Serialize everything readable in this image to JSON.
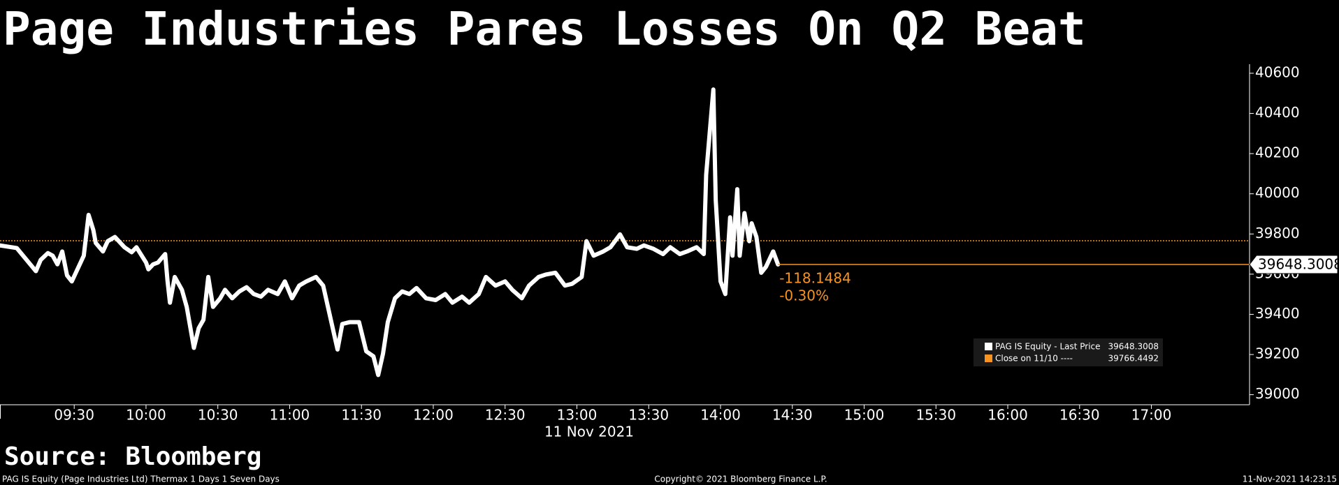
{
  "chart_data": {
    "type": "line",
    "title": "Page Industries Pares Losses On Q2 Beat",
    "source": "Source: Bloomberg",
    "footer_left": "PAG IS Equity (Page Industries Ltd) Thermax 1 Days 1 Seven Days",
    "footer_center": "Copyright© 2021 Bloomberg Finance L.P.",
    "footer_right": "11-Nov-2021 14:23:15",
    "x_label": "11 Nov 2021",
    "xlim": [
      "08:59",
      "17:41"
    ],
    "xticks": [
      "09:30",
      "10:00",
      "10:30",
      "11:00",
      "11:30",
      "12:00",
      "12:30",
      "13:00",
      "13:30",
      "14:00",
      "14:30",
      "15:00",
      "15:30",
      "16:00",
      "16:30",
      "17:00"
    ],
    "ylim": [
      38950,
      40645
    ],
    "yticks": [
      39000,
      39200,
      39400,
      39600,
      39800,
      40000,
      40200,
      40400,
      40600
    ],
    "x": [
      "08:59",
      "09:06",
      "09:14",
      "09:16",
      "09:19",
      "09:21",
      "09:23",
      "09:25",
      "09:27",
      "09:29",
      "09:31",
      "09:34",
      "09:36",
      "09:38",
      "09:39",
      "09:42",
      "09:44",
      "09:47",
      "09:51",
      "09:54",
      "09:56",
      "10:00",
      "10:01",
      "10:03",
      "10:05",
      "10:08",
      "10:09",
      "10:10",
      "10:12",
      "10:15",
      "10:17",
      "10:20",
      "10:22",
      "10:24",
      "10:26",
      "10:28",
      "10:31",
      "10:33",
      "10:36",
      "10:39",
      "10:42",
      "10:45",
      "10:48",
      "10:51",
      "10:55",
      "10:58",
      "11:01",
      "11:04",
      "11:07",
      "11:11",
      "11:14",
      "11:16",
      "11:20",
      "11:22",
      "11:25",
      "11:29",
      "11:32",
      "11:35",
      "11:37",
      "11:39",
      "11:41",
      "11:44",
      "11:47",
      "11:50",
      "11:53",
      "11:57",
      "12:01",
      "12:05",
      "12:08",
      "12:12",
      "12:15",
      "12:19",
      "12:22",
      "12:26",
      "12:30",
      "12:33",
      "12:37",
      "12:40",
      "12:44",
      "12:47",
      "12:51",
      "12:55",
      "12:58",
      "13:02",
      "13:04",
      "13:07",
      "13:11",
      "13:14",
      "13:18",
      "13:21",
      "13:25",
      "13:28",
      "13:32",
      "13:36",
      "13:39",
      "13:43",
      "13:46",
      "13:50",
      "13:53",
      "13:54",
      "13:57",
      "13:58",
      "14:00",
      "14:02",
      "14:04",
      "14:05",
      "14:07",
      "14:08",
      "14:10",
      "14:12",
      "14:13",
      "14:15",
      "14:17",
      "14:19",
      "14:22",
      "14:24"
    ],
    "series": [
      {
        "name": "PAG IS Equity - Last Price",
        "color": "#ffffff",
        "values": [
          39743,
          39730,
          39615,
          39671,
          39705,
          39692,
          39649,
          39713,
          39594,
          39564,
          39615,
          39692,
          39895,
          39819,
          39755,
          39713,
          39764,
          39785,
          39734,
          39709,
          39734,
          39658,
          39624,
          39649,
          39658,
          39700,
          39564,
          39458,
          39586,
          39522,
          39437,
          39233,
          39331,
          39373,
          39586,
          39437,
          39480,
          39522,
          39480,
          39514,
          39535,
          39501,
          39488,
          39522,
          39501,
          39564,
          39480,
          39543,
          39564,
          39586,
          39543,
          39437,
          39225,
          39352,
          39361,
          39361,
          39216,
          39191,
          39098,
          39204,
          39361,
          39480,
          39514,
          39501,
          39531,
          39480,
          39471,
          39501,
          39458,
          39488,
          39458,
          39501,
          39586,
          39543,
          39564,
          39522,
          39480,
          39543,
          39586,
          39598,
          39607,
          39543,
          39552,
          39586,
          39764,
          39692,
          39713,
          39734,
          39798,
          39734,
          39726,
          39743,
          39726,
          39700,
          39734,
          39700,
          39713,
          39734,
          39700,
          40095,
          40519,
          39968,
          39564,
          39501,
          39883,
          39692,
          40023,
          39692,
          39904,
          39764,
          39853,
          39785,
          39607,
          39637,
          39713,
          39648.3008
        ]
      }
    ],
    "close": {
      "name": "Close on 11/10 ----",
      "value": 39766.4492,
      "color": "#f7931e"
    },
    "change": -118.1484,
    "change_pct": {
      "value": -0.3,
      "label": "-0.30%"
    }
  }
}
